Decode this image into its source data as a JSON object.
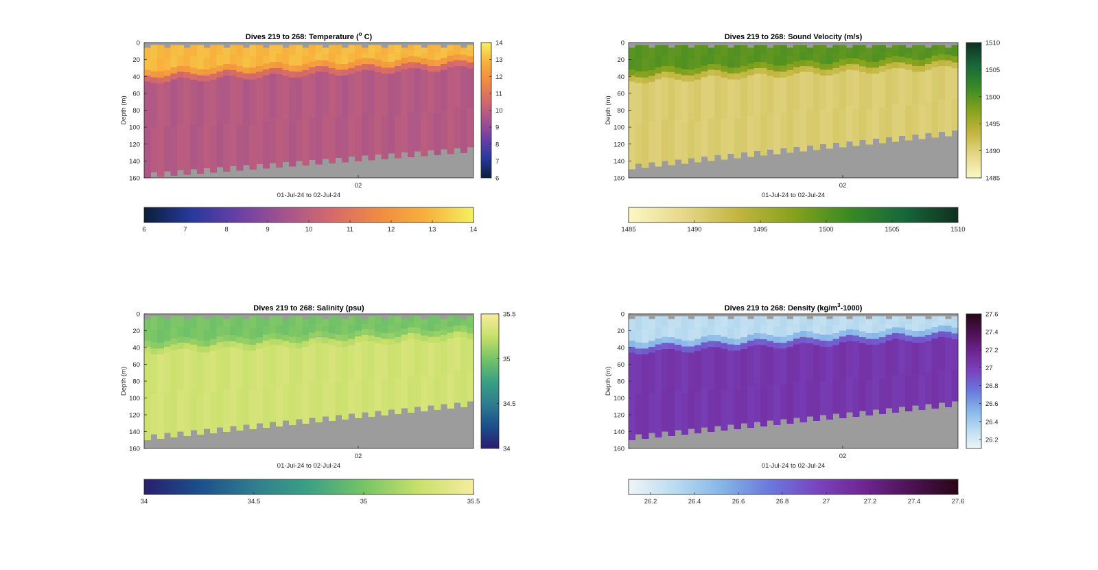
{
  "window": {
    "title": ""
  },
  "chart_data": [
    {
      "type": "heatmap",
      "variable": "temperature",
      "title": "Dives 219 to 268: Temperature (",
      "title_sup": "o",
      "title_tail": " C)",
      "ylabel": "Depth (m)",
      "xlabel": "01-Jul-24 to 02-Jul-24",
      "xticks": [
        {
          "label": "02",
          "frac": 0.65
        }
      ],
      "ylim": [
        160,
        0
      ],
      "yticks": [
        0,
        20,
        40,
        60,
        80,
        100,
        120,
        140,
        160
      ],
      "clim": [
        6,
        14
      ],
      "colorbar_ticks": [
        6,
        7,
        8,
        9,
        10,
        11,
        12,
        13,
        14
      ],
      "colormap": [
        "#0b1f3a",
        "#26399d",
        "#6a3fa6",
        "#a5538e",
        "#d56a6a",
        "#f08b42",
        "#f7b13c",
        "#f5f060"
      ],
      "fill_color": "#9c9c9c",
      "profile": [
        {
          "depth": 0,
          "value": 13.0
        },
        {
          "depth": 30,
          "value": 13.0
        },
        {
          "depth": 45,
          "value": 9.8
        },
        {
          "depth": 160,
          "value": 9.8
        }
      ],
      "mixed_layer_depth_m": [
        46,
        30
      ],
      "bottom_depth_m": [
        160,
        130
      ]
    },
    {
      "type": "heatmap",
      "variable": "sound_velocity",
      "title": "Dives 219 to 268: Sound Velocity (m/s)",
      "ylabel": "Depth (m)",
      "xlabel": "01-Jul-24 to 02-Jul-24",
      "xticks": [
        {
          "label": "02",
          "frac": 0.65
        }
      ],
      "ylim": [
        160,
        0
      ],
      "yticks": [
        0,
        20,
        40,
        60,
        80,
        100,
        120,
        140,
        160
      ],
      "clim": [
        1485,
        1510
      ],
      "colorbar_ticks": [
        1485,
        1490,
        1495,
        1500,
        1505,
        1510
      ],
      "colormap": [
        "#fcf7c4",
        "#e6d88a",
        "#c2b53f",
        "#86a21c",
        "#3a8a24",
        "#17683a",
        "#10301f"
      ],
      "fill_color": "#9c9c9c",
      "profile": [
        {
          "depth": 0,
          "value": 1500.0
        },
        {
          "depth": 30,
          "value": 1500.0
        },
        {
          "depth": 45,
          "value": 1490.5
        },
        {
          "depth": 160,
          "value": 1490.5
        }
      ],
      "mixed_layer_depth_m": [
        46,
        30
      ],
      "bottom_depth_m": [
        150,
        110
      ]
    },
    {
      "type": "heatmap",
      "variable": "salinity",
      "title": "Dives 219 to 268: Salinity (psu)",
      "ylabel": "Depth (m)",
      "xlabel": "01-Jul-24 to 02-Jul-24",
      "xticks": [
        {
          "label": "02",
          "frac": 0.65
        }
      ],
      "ylim": [
        160,
        0
      ],
      "yticks": [
        0,
        20,
        40,
        60,
        80,
        100,
        120,
        140,
        160
      ],
      "clim": [
        34,
        35.5
      ],
      "colorbar_ticks": [
        34,
        34.5,
        35,
        35.5
      ],
      "colorbar_tick_labels": [
        "34",
        "34.5",
        "35",
        "35.5"
      ],
      "colormap": [
        "#2a1e6f",
        "#1b4f8c",
        "#2f7d8e",
        "#3ba184",
        "#76c466",
        "#c8e06a",
        "#f6eca0"
      ],
      "fill_color": "#9c9c9c",
      "profile": [
        {
          "depth": 0,
          "value": 35.0
        },
        {
          "depth": 30,
          "value": 35.0
        },
        {
          "depth": 45,
          "value": 35.3
        },
        {
          "depth": 160,
          "value": 35.3
        }
      ],
      "mixed_layer_depth_m": [
        46,
        30
      ],
      "bottom_depth_m": [
        150,
        110
      ]
    },
    {
      "type": "heatmap",
      "variable": "density",
      "title": "Dives 219 to 268: Density (kg/m",
      "title_sup": "3",
      "title_tail": "-1000)",
      "ylabel": "Depth (m)",
      "xlabel": "01-Jul-24 to 02-Jul-24",
      "xticks": [
        {
          "label": "02",
          "frac": 0.65
        }
      ],
      "ylim": [
        160,
        0
      ],
      "yticks": [
        0,
        20,
        40,
        60,
        80,
        100,
        120,
        140,
        160
      ],
      "clim": [
        26.1,
        27.6
      ],
      "colorbar_ticks": [
        26.2,
        26.4,
        26.6,
        26.8,
        27,
        27.2,
        27.4,
        27.6
      ],
      "colorbar_tick_labels": [
        "26.2",
        "26.4",
        "26.6",
        "26.8",
        "27",
        "27.2",
        "27.4",
        "27.6"
      ],
      "colormap": [
        "#eef5f8",
        "#b9dbf0",
        "#85b4e8",
        "#6a78dc",
        "#7a44c0",
        "#6f2592",
        "#4c1253",
        "#2a0617"
      ],
      "fill_color": "#9c9c9c",
      "profile": [
        {
          "depth": 0,
          "value": 26.3
        },
        {
          "depth": 30,
          "value": 26.3
        },
        {
          "depth": 45,
          "value": 27.05
        },
        {
          "depth": 160,
          "value": 27.05
        }
      ],
      "mixed_layer_depth_m": [
        46,
        30
      ],
      "bottom_depth_m": [
        150,
        110
      ]
    }
  ]
}
